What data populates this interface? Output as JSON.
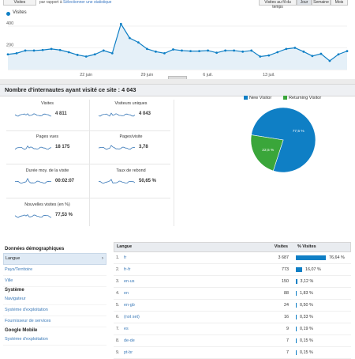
{
  "top": {
    "select_label": "Visites",
    "compare_text": "par rapport à",
    "compare_link": "Sélectionner une statistique",
    "buttons": [
      "Visites au fil du temps",
      "Jour",
      "Semaine",
      "Mois"
    ]
  },
  "chart_data": {
    "type": "area",
    "series": [
      {
        "name": "Visites",
        "values": [
          140,
          150,
          175,
          175,
          180,
          190,
          180,
          160,
          135,
          120,
          140,
          175,
          150,
          420,
          290,
          250,
          190,
          165,
          150,
          185,
          175,
          170,
          170,
          175,
          155,
          175,
          175,
          165,
          175,
          120,
          130,
          160,
          190,
          200,
          165,
          125,
          145,
          80,
          140,
          170
        ]
      }
    ],
    "ylim": [
      0,
      480
    ],
    "yticks": [
      "400",
      "200"
    ],
    "xticks": [
      "22 juin",
      "29 juin",
      "6 juil.",
      "13 juil."
    ],
    "grid": true,
    "colors": {
      "line": "#0f7fc5",
      "fill": "#e5f0f8"
    }
  },
  "summary": {
    "title": "Nombre d'internautes ayant visité ce site : 4 043",
    "metrics": [
      {
        "name": "Visites",
        "value": "4 811"
      },
      {
        "name": "Visiteurs uniques",
        "value": "4 043"
      },
      {
        "name": "Pages vues",
        "value": "18 175"
      },
      {
        "name": "Pages/visite",
        "value": "3,78"
      },
      {
        "name": "Durée moy. de la visite",
        "value": "00:02:07"
      },
      {
        "name": "Taux de rebond",
        "value": "50,65 %"
      },
      {
        "name": "Nouvelles visites (en %)",
        "value": "77,53 %"
      }
    ]
  },
  "pie": {
    "legend": [
      {
        "name": "New Visitor",
        "color": "#0f7fc5"
      },
      {
        "name": "Returning Visitor",
        "color": "#3aa63a"
      }
    ],
    "slices": [
      {
        "name": "New Visitor",
        "value": 77.5,
        "label": "77,5 %"
      },
      {
        "name": "Returning Visitor",
        "value": 22.5,
        "label": "22,5 %"
      }
    ]
  },
  "left_panel": {
    "sections": [
      {
        "title": "Données démographiques",
        "items": [
          "Langue",
          "Pays/Territoire",
          "Ville"
        ]
      },
      {
        "title": "Système",
        "items": [
          "Navigateur",
          "Système d'exploitation",
          "Fournisseur de services"
        ]
      },
      {
        "title": "Google Mobile",
        "items": [
          "Système d'exploitation"
        ]
      }
    ]
  },
  "table": {
    "headers": {
      "dimension": "Langue",
      "visits": "Visites",
      "pct": "% Visites"
    },
    "rows": [
      {
        "num": "1.",
        "lang": "fr",
        "visits": "3 687",
        "pct": "76,64 %",
        "share": 76.64
      },
      {
        "num": "2.",
        "lang": "fr-fr",
        "visits": "773",
        "pct": "16,07 %",
        "share": 16.07
      },
      {
        "num": "3.",
        "lang": "en-us",
        "visits": "150",
        "pct": "3,12 %",
        "share": 3.12
      },
      {
        "num": "4.",
        "lang": "en",
        "visits": "88",
        "pct": "1,83 %",
        "share": 1.83
      },
      {
        "num": "5.",
        "lang": "en-gb",
        "visits": "24",
        "pct": "0,50 %",
        "share": 0.5
      },
      {
        "num": "6.",
        "lang": "(not set)",
        "visits": "16",
        "pct": "0,33 %",
        "share": 0.33
      },
      {
        "num": "7.",
        "lang": "es",
        "visits": "9",
        "pct": "0,19 %",
        "share": 0.19
      },
      {
        "num": "8.",
        "lang": "de-de",
        "visits": "7",
        "pct": "0,15 %",
        "share": 0.15
      },
      {
        "num": "9.",
        "lang": "pt-br",
        "visits": "7",
        "pct": "0,15 %",
        "share": 0.15
      }
    ]
  }
}
